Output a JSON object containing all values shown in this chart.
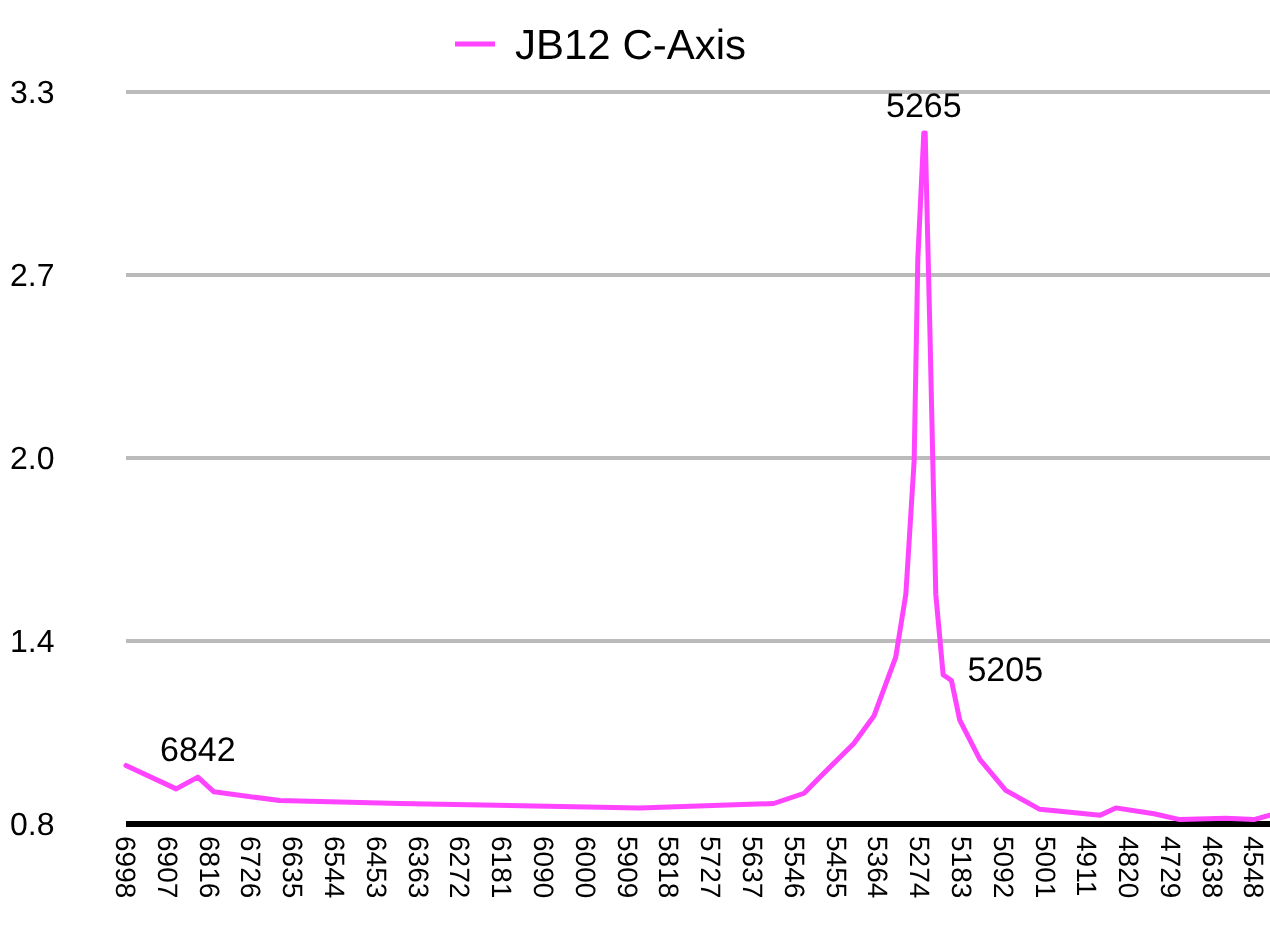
{
  "chart_data": {
    "type": "line",
    "legend": "top",
    "grid": "y",
    "line_style": "solid",
    "marker": "none",
    "x": [
      6998,
      6889,
      6842,
      6807,
      6664,
      6403,
      5882,
      5591,
      5525,
      5491,
      5417,
      5373,
      5326,
      5304,
      5286,
      5278,
      5265,
      5262,
      5252,
      5239,
      5223,
      5205,
      5187,
      5143,
      5087,
      5013,
      4882,
      4848,
      4765,
      4709,
      4609,
      4548,
      4513
    ],
    "series": [
      {
        "name": "JB12 C-Axis",
        "color": "#ff44ff",
        "values": [
          1.0,
          0.92,
          0.96,
          0.91,
          0.88,
          0.87,
          0.855,
          0.87,
          0.905,
          0.96,
          1.075,
          1.17,
          1.37,
          1.585,
          2.04,
          2.73,
          3.16,
          3.16,
          2.5,
          1.585,
          1.31,
          1.29,
          1.155,
          1.02,
          0.915,
          0.85,
          0.83,
          0.855,
          0.835,
          0.815,
          0.82,
          0.815,
          0.83
        ]
      }
    ],
    "xlim": [
      6998,
      4513
    ],
    "xticks": [
      6998,
      6907,
      6816,
      6726,
      6635,
      6544,
      6453,
      6363,
      6272,
      6181,
      6090,
      6000,
      5909,
      5818,
      5727,
      5637,
      5546,
      5455,
      5364,
      5274,
      5183,
      5092,
      5001,
      4911,
      4820,
      4729,
      4638,
      4548
    ],
    "ylim": [
      0.8,
      3.3
    ],
    "yticks": [
      {
        "value": 0.8,
        "label": "0.8"
      },
      {
        "value": 1.425,
        "label": "1.4"
      },
      {
        "value": 2.05,
        "label": "2.0"
      },
      {
        "value": 2.675,
        "label": "2.7"
      },
      {
        "value": 3.3,
        "label": "3.3"
      }
    ],
    "annotations": [
      {
        "text": "6842",
        "x": 6842,
        "y": 0.96
      },
      {
        "text": "5265",
        "x": 5265,
        "y": 3.16
      },
      {
        "text": "5205",
        "x": 5205,
        "y": 1.29
      }
    ]
  }
}
